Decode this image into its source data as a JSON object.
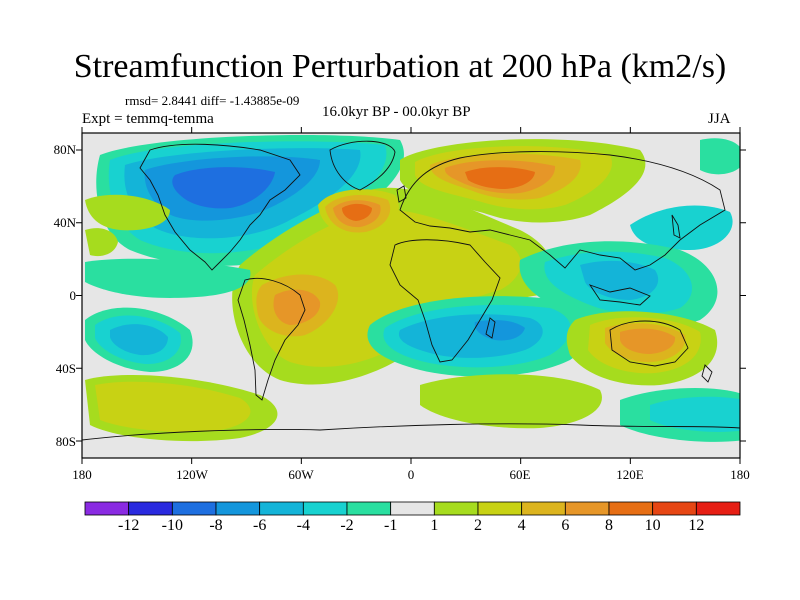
{
  "title": "Streamfunction Perturbation at 200 hPa (km2/s)",
  "stats": "rmsd= 2.8441 diff= -1.43885e-09",
  "experiment": "Expt = temmq-temma",
  "period": "16.0kyr BP - 00.0kyr BP",
  "season": "JJA",
  "lat_labels": [
    "80N",
    "40N",
    "0",
    "40S",
    "80S"
  ],
  "lon_labels": [
    "180",
    "120W",
    "60W",
    "0",
    "60E",
    "120E",
    "180"
  ],
  "colorbar": {
    "labels": [
      "-12",
      "-10",
      "-8",
      "-6",
      "-4",
      "-2",
      "-1",
      "1",
      "2",
      "4",
      "6",
      "8",
      "10",
      "12"
    ],
    "colors": [
      "#8a2be2",
      "#2a2adf",
      "#1e6fe0",
      "#1496dc",
      "#14b4d8",
      "#18d2d0",
      "#2adfa0",
      "#e6e6e6",
      "#a6dc1e",
      "#c8d214",
      "#dcb41e",
      "#e69628",
      "#e66e14",
      "#e64614",
      "#e61e14"
    ]
  },
  "palette": {
    "neutral": "#e6e6e6",
    "neg1": "#2adfa0",
    "neg2": "#18d2d0",
    "neg3": "#14b4d8",
    "neg4": "#1496dc",
    "neg5": "#1e6fe0",
    "pos1": "#a6dc1e",
    "pos2": "#c8d214",
    "pos3": "#dcb41e",
    "pos4": "#e69628",
    "pos5": "#e66e14"
  }
}
